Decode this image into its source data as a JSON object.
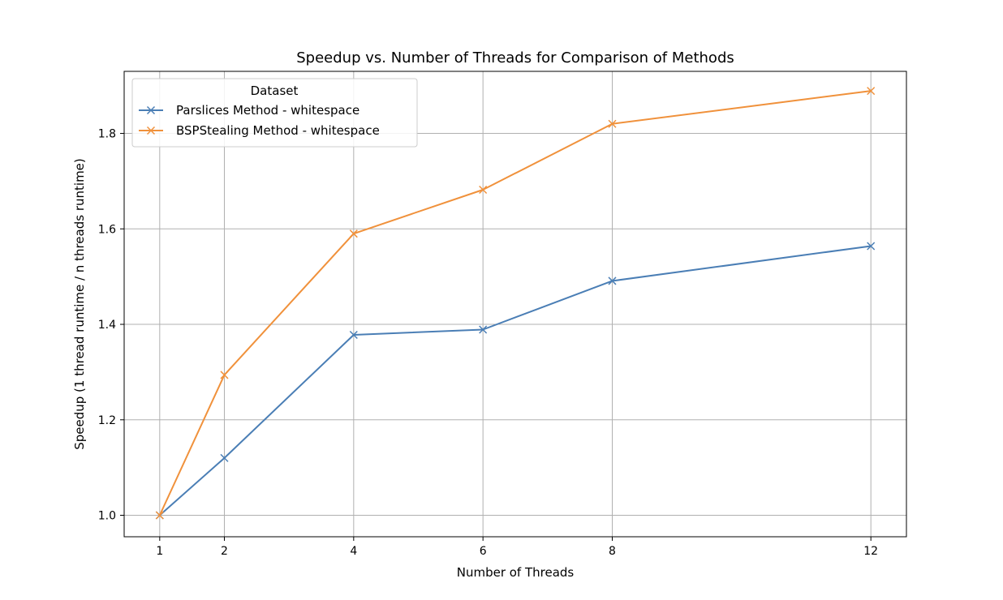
{
  "chart_data": {
    "type": "line",
    "title": "Speedup vs. Number of Threads for Comparison of Methods",
    "xlabel": "Number of Threads",
    "ylabel": "Speedup (1 thread runtime / n threads runtime)",
    "x": [
      1,
      2,
      4,
      6,
      8,
      12
    ],
    "xlim": [
      0.45,
      12.55
    ],
    "ylim": [
      0.955,
      1.93
    ],
    "xticks": [
      1,
      2,
      4,
      6,
      8,
      12
    ],
    "yticks": [
      1.0,
      1.2,
      1.4,
      1.6,
      1.8
    ],
    "ytick_labels": [
      "1.0",
      "1.2",
      "1.4",
      "1.6",
      "1.8"
    ],
    "grid": true,
    "legend": {
      "title": "Dataset",
      "placement": "upper-left"
    },
    "series": [
      {
        "name": "Parslices Method - whitespace",
        "color": "#4a7eb5",
        "marker": "x",
        "values": [
          1.0,
          1.12,
          1.378,
          1.389,
          1.491,
          1.564
        ]
      },
      {
        "name": "BSPStealing Method - whitespace",
        "color": "#f0913b",
        "marker": "x",
        "values": [
          1.0,
          1.294,
          1.59,
          1.682,
          1.82,
          1.889
        ]
      }
    ]
  }
}
